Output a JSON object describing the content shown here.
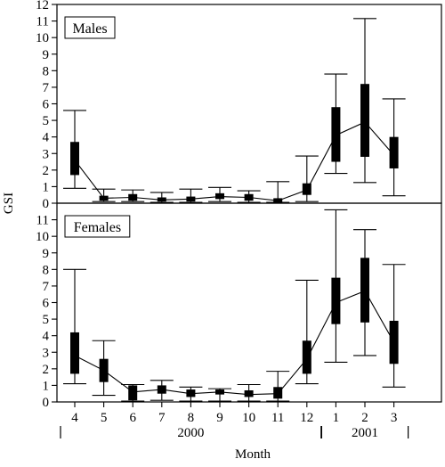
{
  "chart_data": {
    "type": "box",
    "ylabel": "GSI",
    "xlabel": "Month",
    "ylim": [
      0,
      12
    ],
    "y_ticks": [
      "0",
      "1",
      "2",
      "3",
      "4",
      "5",
      "6",
      "7",
      "8",
      "9",
      "10",
      "11",
      "12"
    ],
    "x_ticks": [
      "4",
      "5",
      "6",
      "7",
      "8",
      "9",
      "10",
      "11",
      "12",
      "1",
      "2",
      "3"
    ],
    "years": [
      {
        "label": "2000",
        "from": "4",
        "to": "12"
      },
      {
        "label": "2001",
        "from": "1",
        "to": "3"
      }
    ],
    "panels": [
      {
        "name": "Males",
        "boxes": [
          {
            "month": "4",
            "min": 0.9,
            "q1": 1.7,
            "median": 2.6,
            "q3": 3.7,
            "max": 5.6
          },
          {
            "month": "5",
            "min": 0.1,
            "q1": 0.15,
            "median": 0.3,
            "q3": 0.45,
            "max": 0.85
          },
          {
            "month": "6",
            "min": 0.1,
            "q1": 0.15,
            "median": 0.35,
            "q3": 0.55,
            "max": 0.8
          },
          {
            "month": "7",
            "min": 0.05,
            "q1": 0.1,
            "median": 0.2,
            "q3": 0.35,
            "max": 0.65
          },
          {
            "month": "8",
            "min": 0.05,
            "q1": 0.1,
            "median": 0.25,
            "q3": 0.4,
            "max": 0.85
          },
          {
            "month": "9",
            "min": 0.1,
            "q1": 0.25,
            "median": 0.4,
            "q3": 0.6,
            "max": 0.95
          },
          {
            "month": "10",
            "min": 0.05,
            "q1": 0.15,
            "median": 0.35,
            "q3": 0.55,
            "max": 0.75
          },
          {
            "month": "11",
            "min": 0.05,
            "q1": 0.05,
            "median": 0.15,
            "q3": 0.3,
            "max": 1.3
          },
          {
            "month": "12",
            "min": 0.1,
            "q1": 0.5,
            "median": 0.8,
            "q3": 1.2,
            "max": 2.85
          },
          {
            "month": "1",
            "min": 1.8,
            "q1": 2.5,
            "median": 4.1,
            "q3": 5.8,
            "max": 7.8
          },
          {
            "month": "2",
            "min": 1.25,
            "q1": 2.8,
            "median": 4.9,
            "q3": 7.2,
            "max": 11.15
          },
          {
            "month": "3",
            "min": 0.45,
            "q1": 2.1,
            "median": 2.9,
            "q3": 4.0,
            "max": 6.3
          }
        ]
      },
      {
        "name": "Females",
        "boxes": [
          {
            "month": "4",
            "min": 1.1,
            "q1": 1.7,
            "median": 2.8,
            "q3": 4.2,
            "max": 8.0
          },
          {
            "month": "5",
            "min": 0.4,
            "q1": 1.2,
            "median": 1.9,
            "q3": 2.6,
            "max": 3.7
          },
          {
            "month": "6",
            "min": 0.05,
            "q1": 0.1,
            "median": 0.6,
            "q3": 1.0,
            "max": 1.05
          },
          {
            "month": "7",
            "min": 0.1,
            "q1": 0.5,
            "median": 0.75,
            "q3": 1.0,
            "max": 1.3
          },
          {
            "month": "8",
            "min": 0.05,
            "q1": 0.3,
            "median": 0.5,
            "q3": 0.75,
            "max": 0.9
          },
          {
            "month": "9",
            "min": 0.05,
            "q1": 0.45,
            "median": 0.6,
            "q3": 0.75,
            "max": 0.8
          },
          {
            "month": "10",
            "min": 0.05,
            "q1": 0.3,
            "median": 0.45,
            "q3": 0.7,
            "max": 1.05
          },
          {
            "month": "11",
            "min": 0.05,
            "q1": 0.2,
            "median": 0.5,
            "q3": 0.9,
            "max": 1.85
          },
          {
            "month": "12",
            "min": 1.1,
            "q1": 1.7,
            "median": 2.6,
            "q3": 3.7,
            "max": 7.35
          },
          {
            "month": "1",
            "min": 2.4,
            "q1": 4.7,
            "median": 6.0,
            "q3": 7.5,
            "max": 11.6
          },
          {
            "month": "2",
            "min": 2.8,
            "q1": 4.8,
            "median": 6.7,
            "q3": 8.7,
            "max": 10.4
          },
          {
            "month": "3",
            "min": 0.9,
            "q1": 2.3,
            "median": 3.6,
            "q3": 4.9,
            "max": 8.3
          }
        ]
      }
    ]
  }
}
